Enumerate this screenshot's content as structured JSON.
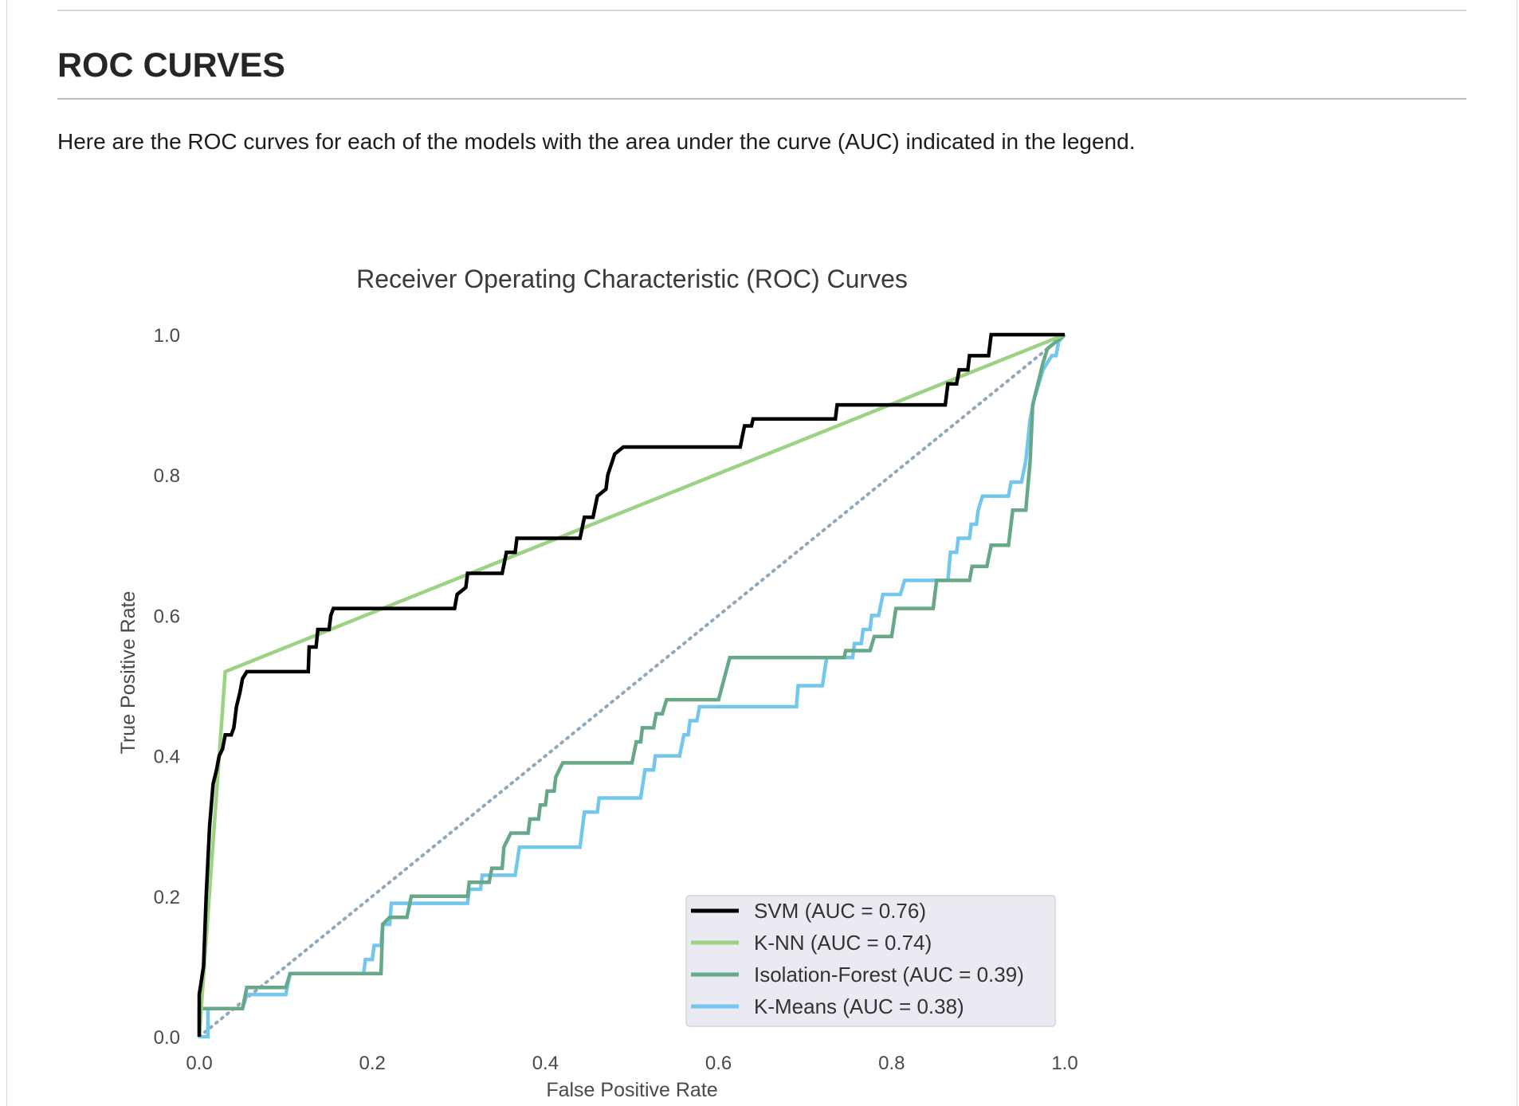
{
  "page": {
    "heading": "ROC CURVES",
    "intro": "Here are the ROC curves for each of the models with the area under the curve (AUC) indicated in the legend."
  },
  "chart_data": {
    "type": "line",
    "title": "Receiver Operating Characteristic (ROC) Curves",
    "xlabel": "False Positive Rate",
    "ylabel": "True Positive Rate",
    "xlim": [
      0.0,
      1.0
    ],
    "ylim": [
      0.0,
      1.0
    ],
    "xticks": [
      "0.0",
      "0.2",
      "0.4",
      "0.6",
      "0.8",
      "1.0"
    ],
    "yticks": [
      "0.0",
      "0.2",
      "0.4",
      "0.6",
      "0.8",
      "1.0"
    ],
    "grid": false,
    "legend_position": "lower-right",
    "baseline": {
      "style": "dotted",
      "color": "#8fa8ba",
      "points": [
        [
          0.0,
          0.0
        ],
        [
          1.0,
          1.0
        ]
      ]
    },
    "series": [
      {
        "name": "SVM (AUC = 0.76)",
        "color": "#000000",
        "points": [
          [
            0.0,
            0.0
          ],
          [
            0.0,
            0.06
          ],
          [
            0.005,
            0.1
          ],
          [
            0.008,
            0.2
          ],
          [
            0.012,
            0.3
          ],
          [
            0.016,
            0.36
          ],
          [
            0.02,
            0.38
          ],
          [
            0.023,
            0.4
          ],
          [
            0.027,
            0.41
          ],
          [
            0.03,
            0.43
          ],
          [
            0.037,
            0.43
          ],
          [
            0.04,
            0.44
          ],
          [
            0.043,
            0.47
          ],
          [
            0.047,
            0.49
          ],
          [
            0.05,
            0.51
          ],
          [
            0.055,
            0.52
          ],
          [
            0.126,
            0.52
          ],
          [
            0.127,
            0.555
          ],
          [
            0.135,
            0.555
          ],
          [
            0.137,
            0.58
          ],
          [
            0.15,
            0.58
          ],
          [
            0.152,
            0.6
          ],
          [
            0.155,
            0.61
          ],
          [
            0.295,
            0.61
          ],
          [
            0.298,
            0.63
          ],
          [
            0.308,
            0.64
          ],
          [
            0.31,
            0.66
          ],
          [
            0.35,
            0.66
          ],
          [
            0.355,
            0.69
          ],
          [
            0.365,
            0.69
          ],
          [
            0.367,
            0.71
          ],
          [
            0.44,
            0.71
          ],
          [
            0.445,
            0.74
          ],
          [
            0.455,
            0.74
          ],
          [
            0.46,
            0.77
          ],
          [
            0.47,
            0.78
          ],
          [
            0.472,
            0.8
          ],
          [
            0.48,
            0.83
          ],
          [
            0.49,
            0.84
          ],
          [
            0.625,
            0.84
          ],
          [
            0.63,
            0.87
          ],
          [
            0.638,
            0.87
          ],
          [
            0.64,
            0.88
          ],
          [
            0.735,
            0.88
          ],
          [
            0.737,
            0.9
          ],
          [
            0.862,
            0.9
          ],
          [
            0.865,
            0.93
          ],
          [
            0.875,
            0.93
          ],
          [
            0.878,
            0.95
          ],
          [
            0.888,
            0.95
          ],
          [
            0.89,
            0.97
          ],
          [
            0.912,
            0.97
          ],
          [
            0.915,
            1.0
          ],
          [
            1.0,
            1.0
          ]
        ]
      },
      {
        "name": "K-NN (AUC = 0.74)",
        "color": "#9bd382",
        "points": [
          [
            0.0,
            0.0
          ],
          [
            0.03,
            0.52
          ],
          [
            1.0,
            1.0
          ]
        ]
      },
      {
        "name": "Isolation-Forest (AUC = 0.39)",
        "color": "#67a889",
        "points": [
          [
            0.0,
            0.0
          ],
          [
            0.0,
            0.04
          ],
          [
            0.05,
            0.04
          ],
          [
            0.055,
            0.07
          ],
          [
            0.1,
            0.07
          ],
          [
            0.105,
            0.09
          ],
          [
            0.21,
            0.09
          ],
          [
            0.212,
            0.16
          ],
          [
            0.22,
            0.17
          ],
          [
            0.24,
            0.17
          ],
          [
            0.245,
            0.2
          ],
          [
            0.31,
            0.2
          ],
          [
            0.312,
            0.22
          ],
          [
            0.335,
            0.22
          ],
          [
            0.338,
            0.24
          ],
          [
            0.35,
            0.24
          ],
          [
            0.352,
            0.27
          ],
          [
            0.36,
            0.29
          ],
          [
            0.38,
            0.29
          ],
          [
            0.382,
            0.31
          ],
          [
            0.392,
            0.31
          ],
          [
            0.394,
            0.33
          ],
          [
            0.4,
            0.33
          ],
          [
            0.402,
            0.35
          ],
          [
            0.41,
            0.35
          ],
          [
            0.412,
            0.37
          ],
          [
            0.42,
            0.39
          ],
          [
            0.5,
            0.39
          ],
          [
            0.505,
            0.42
          ],
          [
            0.51,
            0.42
          ],
          [
            0.512,
            0.44
          ],
          [
            0.525,
            0.44
          ],
          [
            0.528,
            0.46
          ],
          [
            0.535,
            0.46
          ],
          [
            0.54,
            0.48
          ],
          [
            0.6,
            0.48
          ],
          [
            0.613,
            0.54
          ],
          [
            0.745,
            0.54
          ],
          [
            0.747,
            0.55
          ],
          [
            0.775,
            0.55
          ],
          [
            0.78,
            0.57
          ],
          [
            0.8,
            0.57
          ],
          [
            0.805,
            0.61
          ],
          [
            0.848,
            0.61
          ],
          [
            0.852,
            0.65
          ],
          [
            0.89,
            0.65
          ],
          [
            0.893,
            0.67
          ],
          [
            0.91,
            0.67
          ],
          [
            0.915,
            0.7
          ],
          [
            0.935,
            0.7
          ],
          [
            0.94,
            0.75
          ],
          [
            0.955,
            0.75
          ],
          [
            0.96,
            0.82
          ],
          [
            0.963,
            0.9
          ],
          [
            0.975,
            0.96
          ],
          [
            0.98,
            0.98
          ],
          [
            1.0,
            1.0
          ]
        ]
      },
      {
        "name": "K-Means (AUC = 0.38)",
        "color": "#73c7ee",
        "points": [
          [
            0.0,
            0.0
          ],
          [
            0.005,
            0.0
          ],
          [
            0.01,
            0.0
          ],
          [
            0.01,
            0.04
          ],
          [
            0.05,
            0.04
          ],
          [
            0.055,
            0.06
          ],
          [
            0.1,
            0.06
          ],
          [
            0.105,
            0.09
          ],
          [
            0.19,
            0.09
          ],
          [
            0.192,
            0.11
          ],
          [
            0.2,
            0.11
          ],
          [
            0.202,
            0.13
          ],
          [
            0.21,
            0.13
          ],
          [
            0.212,
            0.16
          ],
          [
            0.22,
            0.16
          ],
          [
            0.222,
            0.19
          ],
          [
            0.31,
            0.19
          ],
          [
            0.312,
            0.21
          ],
          [
            0.325,
            0.21
          ],
          [
            0.327,
            0.23
          ],
          [
            0.365,
            0.23
          ],
          [
            0.37,
            0.27
          ],
          [
            0.44,
            0.27
          ],
          [
            0.445,
            0.32
          ],
          [
            0.46,
            0.32
          ],
          [
            0.462,
            0.34
          ],
          [
            0.51,
            0.34
          ],
          [
            0.515,
            0.38
          ],
          [
            0.525,
            0.38
          ],
          [
            0.527,
            0.4
          ],
          [
            0.555,
            0.4
          ],
          [
            0.56,
            0.43
          ],
          [
            0.565,
            0.43
          ],
          [
            0.567,
            0.45
          ],
          [
            0.575,
            0.45
          ],
          [
            0.578,
            0.47
          ],
          [
            0.69,
            0.47
          ],
          [
            0.692,
            0.5
          ],
          [
            0.72,
            0.5
          ],
          [
            0.725,
            0.54
          ],
          [
            0.755,
            0.54
          ],
          [
            0.757,
            0.56
          ],
          [
            0.765,
            0.56
          ],
          [
            0.767,
            0.58
          ],
          [
            0.775,
            0.58
          ],
          [
            0.777,
            0.6
          ],
          [
            0.785,
            0.6
          ],
          [
            0.79,
            0.63
          ],
          [
            0.81,
            0.63
          ],
          [
            0.815,
            0.65
          ],
          [
            0.865,
            0.65
          ],
          [
            0.868,
            0.69
          ],
          [
            0.875,
            0.69
          ],
          [
            0.877,
            0.71
          ],
          [
            0.89,
            0.71
          ],
          [
            0.892,
            0.73
          ],
          [
            0.898,
            0.73
          ],
          [
            0.9,
            0.75
          ],
          [
            0.905,
            0.77
          ],
          [
            0.935,
            0.77
          ],
          [
            0.938,
            0.79
          ],
          [
            0.95,
            0.79
          ],
          [
            0.955,
            0.82
          ],
          [
            0.96,
            0.88
          ],
          [
            0.965,
            0.91
          ],
          [
            0.975,
            0.95
          ],
          [
            0.985,
            0.97
          ],
          [
            0.99,
            0.97
          ],
          [
            0.993,
            0.99
          ],
          [
            1.0,
            1.0
          ]
        ]
      }
    ]
  }
}
